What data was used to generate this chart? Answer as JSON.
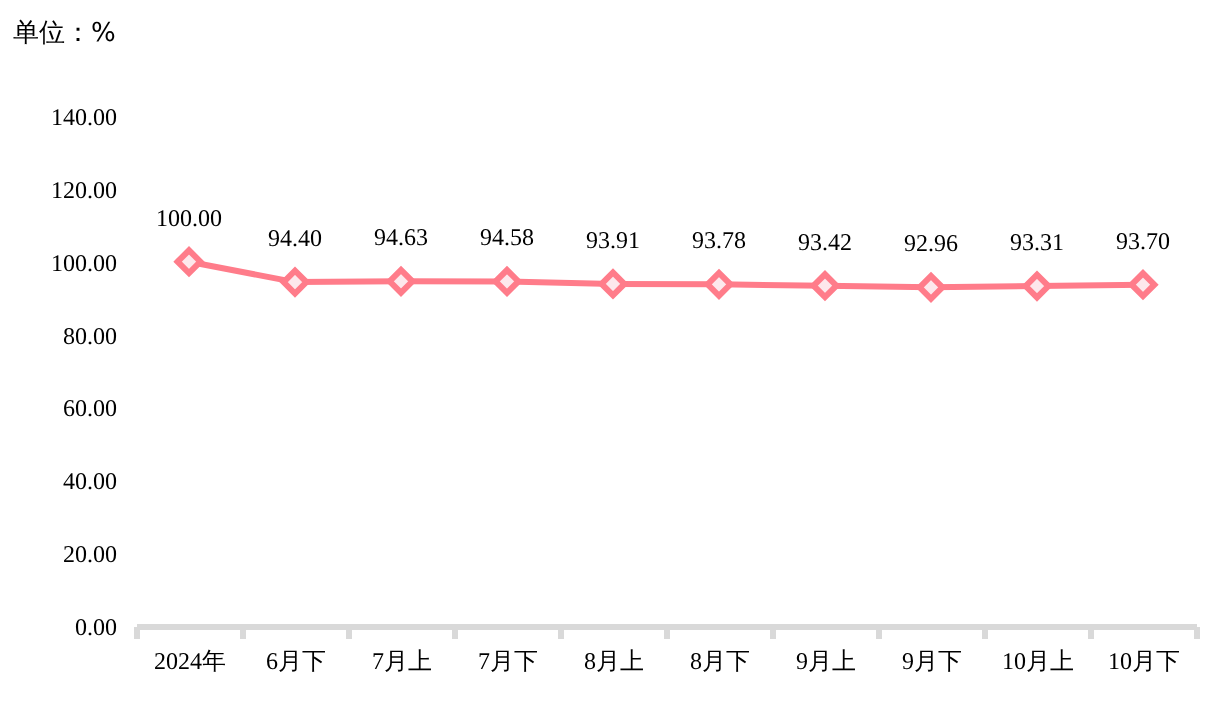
{
  "chart_data": {
    "type": "line",
    "ylabel": "单位：%",
    "categories": [
      "2024年",
      "6月下",
      "7月上",
      "7月下",
      "8月上",
      "8月下",
      "9月上",
      "9月下",
      "10月上",
      "10月下"
    ],
    "series": [
      {
        "color": "#ff7c8a",
        "values": [
          100.0,
          94.4,
          94.63,
          94.58,
          93.91,
          93.78,
          93.42,
          92.96,
          93.31,
          93.7
        ],
        "value_labels": [
          "100.00",
          "94.40",
          "94.63",
          "94.58",
          "93.91",
          "93.78",
          "93.42",
          "92.96",
          "93.31",
          "93.70"
        ]
      }
    ],
    "ylim": [
      0,
      140
    ],
    "yticks": [
      {
        "value": 0,
        "label": "0.00"
      },
      {
        "value": 20,
        "label": "20.00"
      },
      {
        "value": 40,
        "label": "40.00"
      },
      {
        "value": 60,
        "label": "60.00"
      },
      {
        "value": 80,
        "label": "80.00"
      },
      {
        "value": 100,
        "label": "100.00"
      },
      {
        "value": 120,
        "label": "120.00"
      },
      {
        "value": 140,
        "label": "140.00"
      }
    ],
    "grid": false,
    "legend": false,
    "marker": "diamond",
    "line_style": "solid"
  }
}
